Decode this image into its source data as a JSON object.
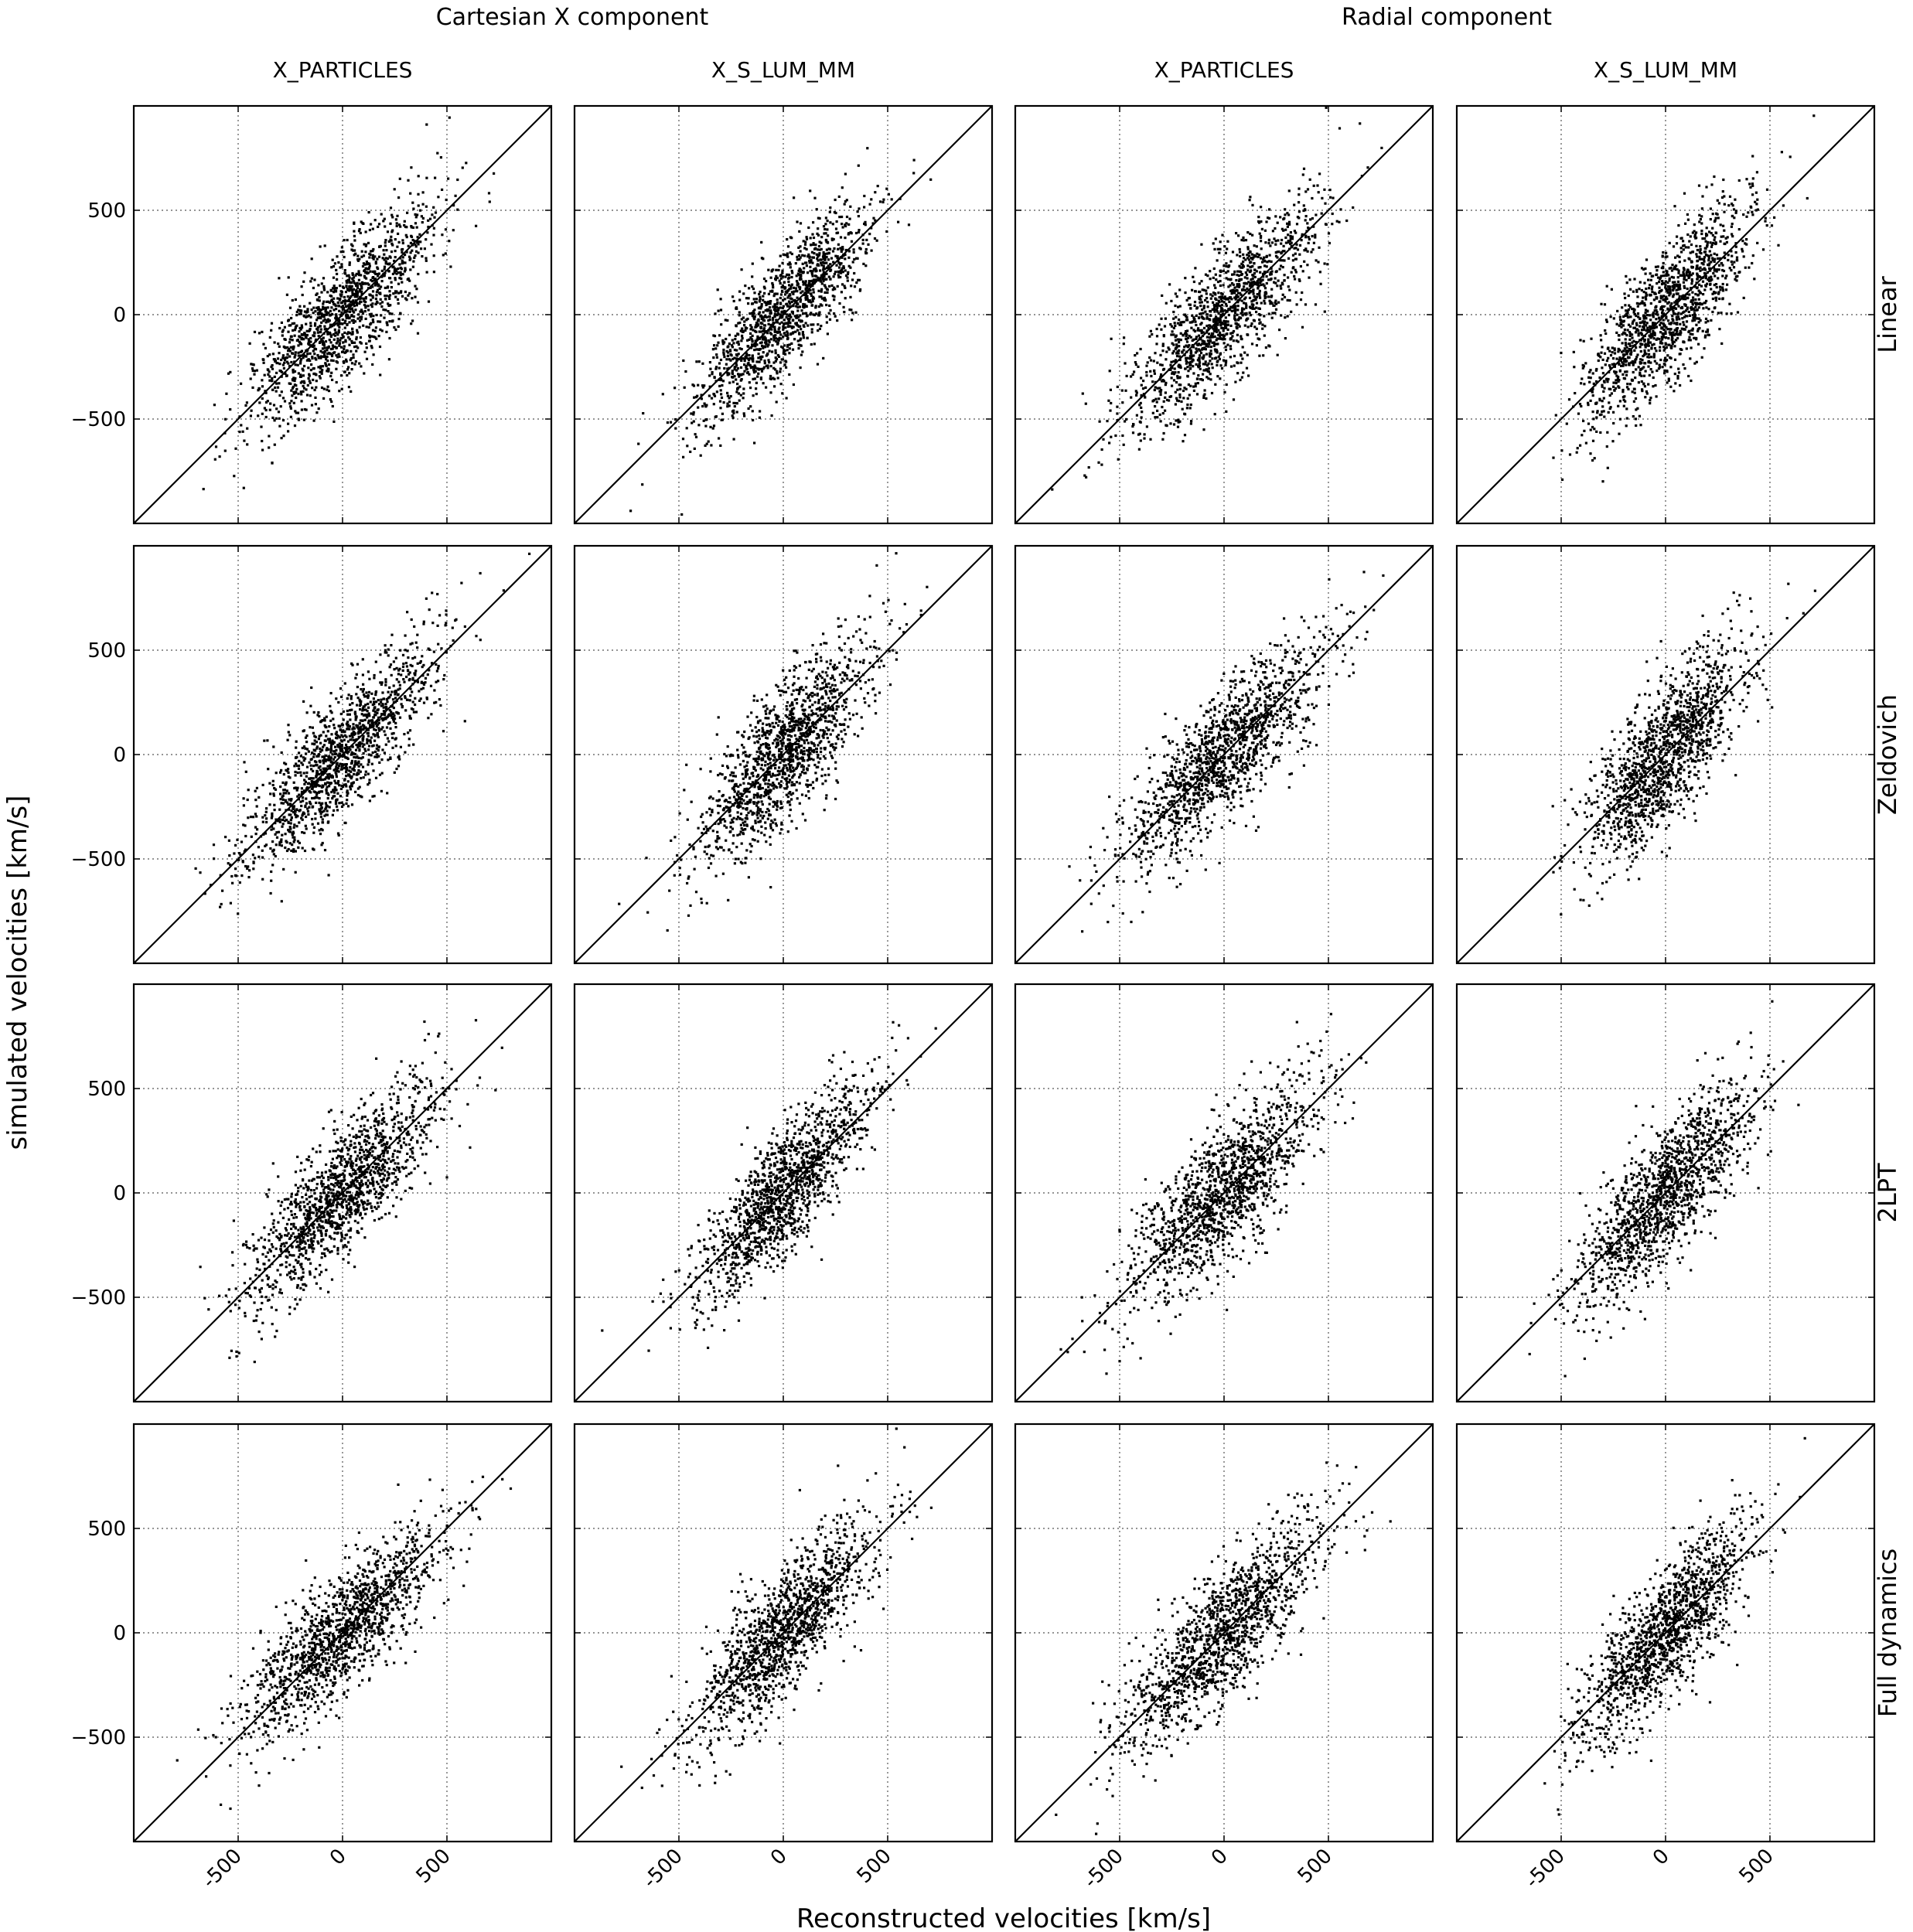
{
  "chart_data": {
    "type": "scatter",
    "layout": "4 rows x 4 columns grid of scatter panels with identity line",
    "xlabel": "Reconstructed velocities [km/s]",
    "ylabel": "simulated velocities [km/s]",
    "group_titles": [
      "Cartesian X component",
      "Radial component"
    ],
    "column_titles": [
      "X_PARTICLES",
      "X_S_LUM_MM",
      "X_PARTICLES",
      "X_S_LUM_MM"
    ],
    "row_titles": [
      "Linear",
      "Zeldovich",
      "2LPT",
      "Full dynamics"
    ],
    "xlim": [
      -1000,
      1000
    ],
    "ylim": [
      -1000,
      1000
    ],
    "xticks": [
      -500,
      0,
      500
    ],
    "xtick_labels": [
      "-500",
      "0",
      "500"
    ],
    "yticks": [
      500,
      0,
      -500
    ],
    "ytick_labels": [
      "500",
      "0",
      "−500"
    ],
    "grid": true,
    "grid_style": "dotted",
    "reference_line": "y = x",
    "point_color": "#000000",
    "points_per_panel_approx": 1400,
    "panels": [
      {
        "row": "Linear",
        "column": "X_PARTICLES",
        "group": "Cartesian X component",
        "x_mean": 0,
        "y_mean": 0,
        "x_sd": 220,
        "y_sd": 260,
        "correlation": 0.8
      },
      {
        "row": "Linear",
        "column": "X_S_LUM_MM",
        "group": "Cartesian X component",
        "x_mean": 0,
        "y_mean": 0,
        "x_sd": 210,
        "y_sd": 260,
        "correlation": 0.82
      },
      {
        "row": "Linear",
        "column": "X_PARTICLES",
        "group": "Radial component",
        "x_mean": 0,
        "y_mean": 0,
        "x_sd": 230,
        "y_sd": 260,
        "correlation": 0.8
      },
      {
        "row": "Linear",
        "column": "X_S_LUM_MM",
        "group": "Radial component",
        "x_mean": 0,
        "y_mean": 0,
        "x_sd": 200,
        "y_sd": 260,
        "correlation": 0.78
      },
      {
        "row": "Zeldovich",
        "column": "X_PARTICLES",
        "group": "Cartesian X component",
        "x_mean": 0,
        "y_mean": 0,
        "x_sd": 230,
        "y_sd": 260,
        "correlation": 0.84
      },
      {
        "row": "Zeldovich",
        "column": "X_S_LUM_MM",
        "group": "Cartesian X component",
        "x_mean": 0,
        "y_mean": 0,
        "x_sd": 200,
        "y_sd": 260,
        "correlation": 0.78
      },
      {
        "row": "Zeldovich",
        "column": "X_PARTICLES",
        "group": "Radial component",
        "x_mean": 0,
        "y_mean": 0,
        "x_sd": 240,
        "y_sd": 260,
        "correlation": 0.82
      },
      {
        "row": "Zeldovich",
        "column": "X_S_LUM_MM",
        "group": "Radial component",
        "x_mean": 0,
        "y_mean": 0,
        "x_sd": 190,
        "y_sd": 260,
        "correlation": 0.76
      },
      {
        "row": "2LPT",
        "column": "X_PARTICLES",
        "group": "Cartesian X component",
        "x_mean": 0,
        "y_mean": 0,
        "x_sd": 220,
        "y_sd": 260,
        "correlation": 0.82
      },
      {
        "row": "2LPT",
        "column": "X_S_LUM_MM",
        "group": "Cartesian X component",
        "x_mean": 0,
        "y_mean": 0,
        "x_sd": 210,
        "y_sd": 260,
        "correlation": 0.84
      },
      {
        "row": "2LPT",
        "column": "X_PARTICLES",
        "group": "Radial component",
        "x_mean": 0,
        "y_mean": 0,
        "x_sd": 220,
        "y_sd": 260,
        "correlation": 0.78
      },
      {
        "row": "2LPT",
        "column": "X_S_LUM_MM",
        "group": "Radial component",
        "x_mean": 0,
        "y_mean": 0,
        "x_sd": 210,
        "y_sd": 260,
        "correlation": 0.8
      },
      {
        "row": "Full dynamics",
        "column": "X_PARTICLES",
        "group": "Cartesian X component",
        "x_mean": 0,
        "y_mean": 0,
        "x_sd": 240,
        "y_sd": 260,
        "correlation": 0.84
      },
      {
        "row": "Full dynamics",
        "column": "X_S_LUM_MM",
        "group": "Cartesian X component",
        "x_mean": 0,
        "y_mean": 0,
        "x_sd": 210,
        "y_sd": 260,
        "correlation": 0.82
      },
      {
        "row": "Full dynamics",
        "column": "X_PARTICLES",
        "group": "Radial component",
        "x_mean": 0,
        "y_mean": 0,
        "x_sd": 240,
        "y_sd": 270,
        "correlation": 0.82
      },
      {
        "row": "Full dynamics",
        "column": "X_S_LUM_MM",
        "group": "Radial component",
        "x_mean": 0,
        "y_mean": 0,
        "x_sd": 200,
        "y_sd": 260,
        "correlation": 0.8
      }
    ]
  }
}
